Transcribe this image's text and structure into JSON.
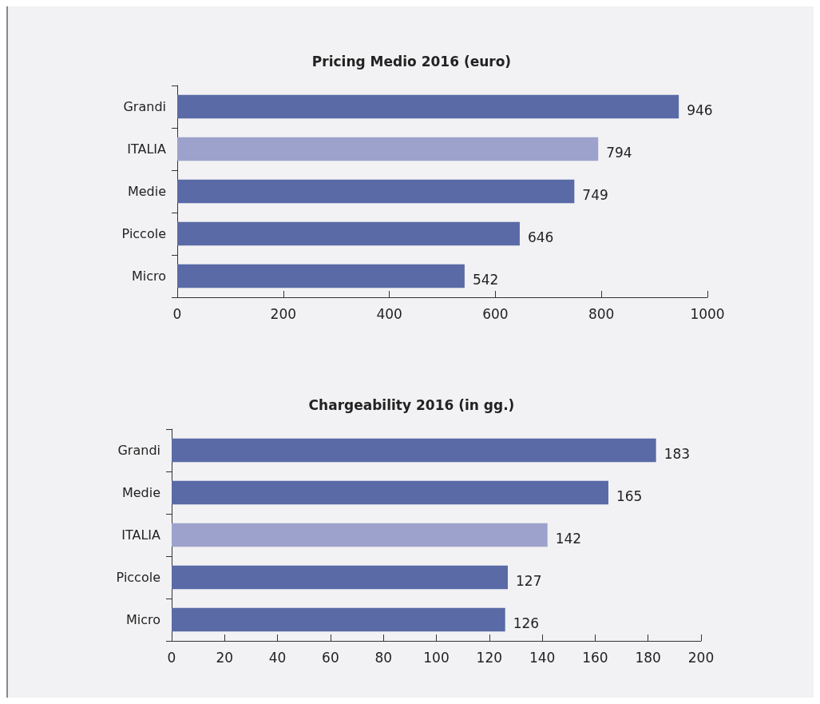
{
  "chart_data": [
    {
      "type": "bar",
      "orientation": "horizontal",
      "title": "Pricing Medio 2016 (euro)",
      "categories": [
        "Grandi",
        "ITALIA",
        "Medie",
        "Piccole",
        "Micro"
      ],
      "values": [
        946,
        794,
        749,
        646,
        542
      ],
      "colors": [
        "#5a6aa6",
        "#9da2cc",
        "#5a6aa6",
        "#5a6aa6",
        "#5a6aa6"
      ],
      "xlim": [
        0,
        1000
      ],
      "xticks": [
        0,
        200,
        400,
        600,
        800,
        1000
      ],
      "data_labels": true,
      "grid": false
    },
    {
      "type": "bar",
      "orientation": "horizontal",
      "title": "Chargeability 2016 (in gg.)",
      "categories": [
        "Grandi",
        "Medie",
        "ITALIA",
        "Piccole",
        "Micro"
      ],
      "values": [
        183,
        165,
        142,
        127,
        126
      ],
      "colors": [
        "#5a6aa6",
        "#5a6aa6",
        "#9da2cc",
        "#5a6aa6",
        "#5a6aa6"
      ],
      "xlim": [
        0,
        200
      ],
      "xticks": [
        0,
        20,
        40,
        60,
        80,
        100,
        120,
        140,
        160,
        180,
        200
      ],
      "data_labels": true,
      "grid": false
    }
  ]
}
